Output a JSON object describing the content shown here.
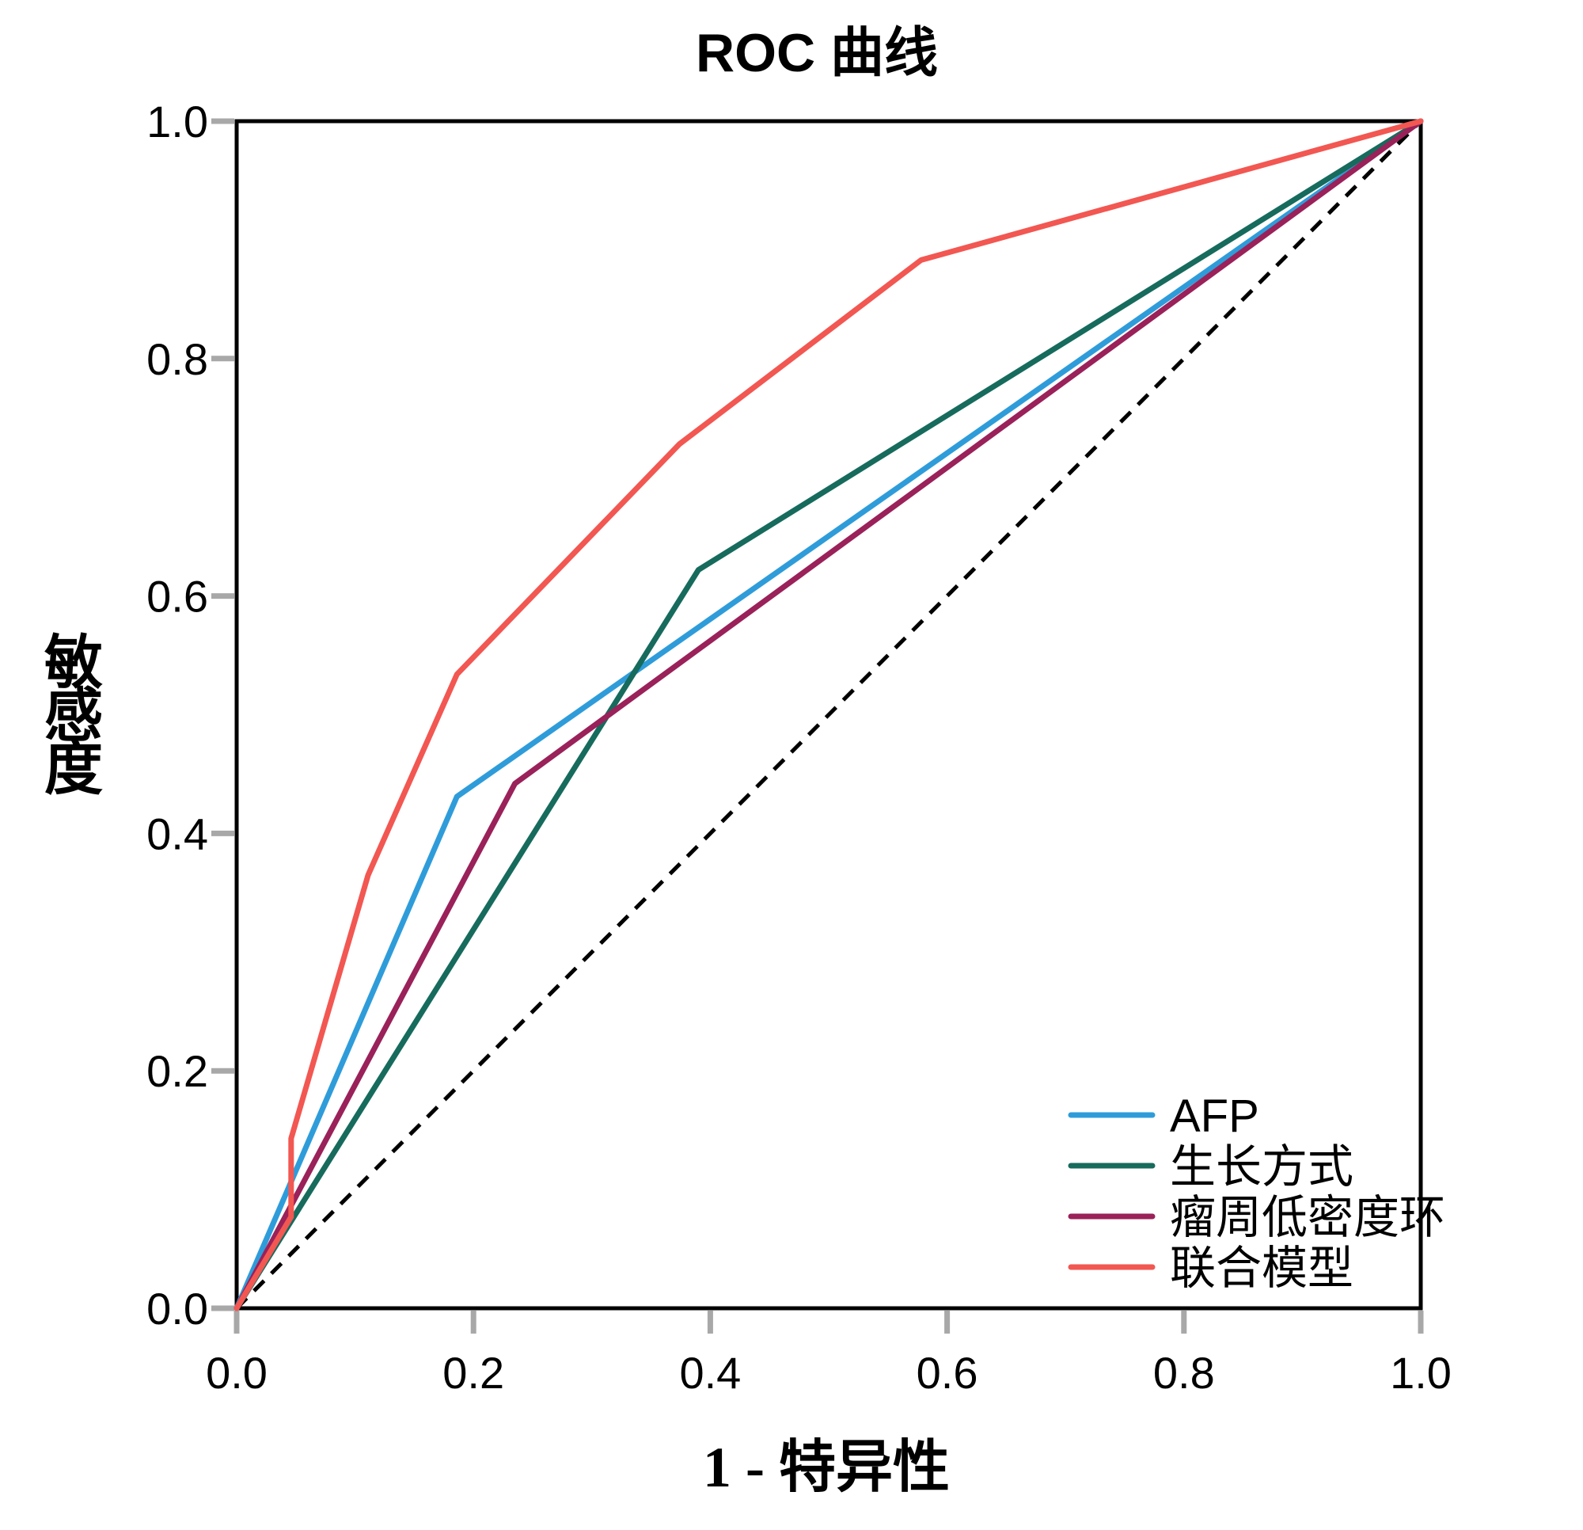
{
  "title": "ROC 曲线",
  "x_axis_label": "1 - 特异性",
  "y_axis_label": "敏感度",
  "legend": {
    "items": [
      {
        "label": "AFP",
        "color": "#2F9CDA"
      },
      {
        "label": "生长方式",
        "color": "#166B5D"
      },
      {
        "label": "瘤周低密度环",
        "color": "#9A2159"
      },
      {
        "label": "联合模型",
        "color": "#F25752"
      }
    ]
  },
  "colors": {
    "background": "#FFFFFF",
    "axis_frame": "#000000",
    "tick_mark": "#A8A8A8",
    "text": "#000000",
    "reference_line": "#000000"
  },
  "chart_data": {
    "type": "line",
    "title": "ROC 曲线",
    "xlabel": "1 - 特异性",
    "ylabel": "敏感度",
    "xlim": [
      0,
      1
    ],
    "ylim": [
      0,
      1
    ],
    "grid": false,
    "legend_position": "inside-bottom-right",
    "x_ticks": [
      0.0,
      0.2,
      0.4,
      0.6,
      0.8,
      1.0
    ],
    "y_ticks": [
      0.0,
      0.2,
      0.4,
      0.6,
      0.8,
      1.0
    ],
    "x_tick_labels": [
      "0.0",
      "0.2",
      "0.4",
      "0.6",
      "0.8",
      "1.0"
    ],
    "y_tick_labels": [
      "0.0",
      "0.2",
      "0.4",
      "0.6",
      "0.8",
      "1.0"
    ],
    "series": [
      {
        "name": "AFP",
        "color": "#2F9CDA",
        "points": [
          [
            0,
            0
          ],
          [
            0.186,
            0.431
          ],
          [
            1,
            1
          ]
        ]
      },
      {
        "name": "生长方式",
        "color": "#166B5D",
        "points": [
          [
            0,
            0
          ],
          [
            0.39,
            0.622
          ],
          [
            1,
            1
          ]
        ]
      },
      {
        "name": "瘤周低密度环",
        "color": "#9A2159",
        "points": [
          [
            0,
            0
          ],
          [
            0.235,
            0.442
          ],
          [
            1,
            1
          ]
        ]
      },
      {
        "name": "联合模型",
        "color": "#F25752",
        "points": [
          [
            0,
            0
          ],
          [
            0.046,
            0.077
          ],
          [
            0.046,
            0.143
          ],
          [
            0.111,
            0.365
          ],
          [
            0.186,
            0.534
          ],
          [
            0.374,
            0.728
          ],
          [
            0.578,
            0.883
          ],
          [
            1,
            1
          ]
        ]
      }
    ],
    "reference_line": {
      "name": "reference-diagonal",
      "style": "dashed",
      "color": "#000000",
      "points": [
        [
          0,
          0
        ],
        [
          1,
          1
        ]
      ]
    }
  }
}
